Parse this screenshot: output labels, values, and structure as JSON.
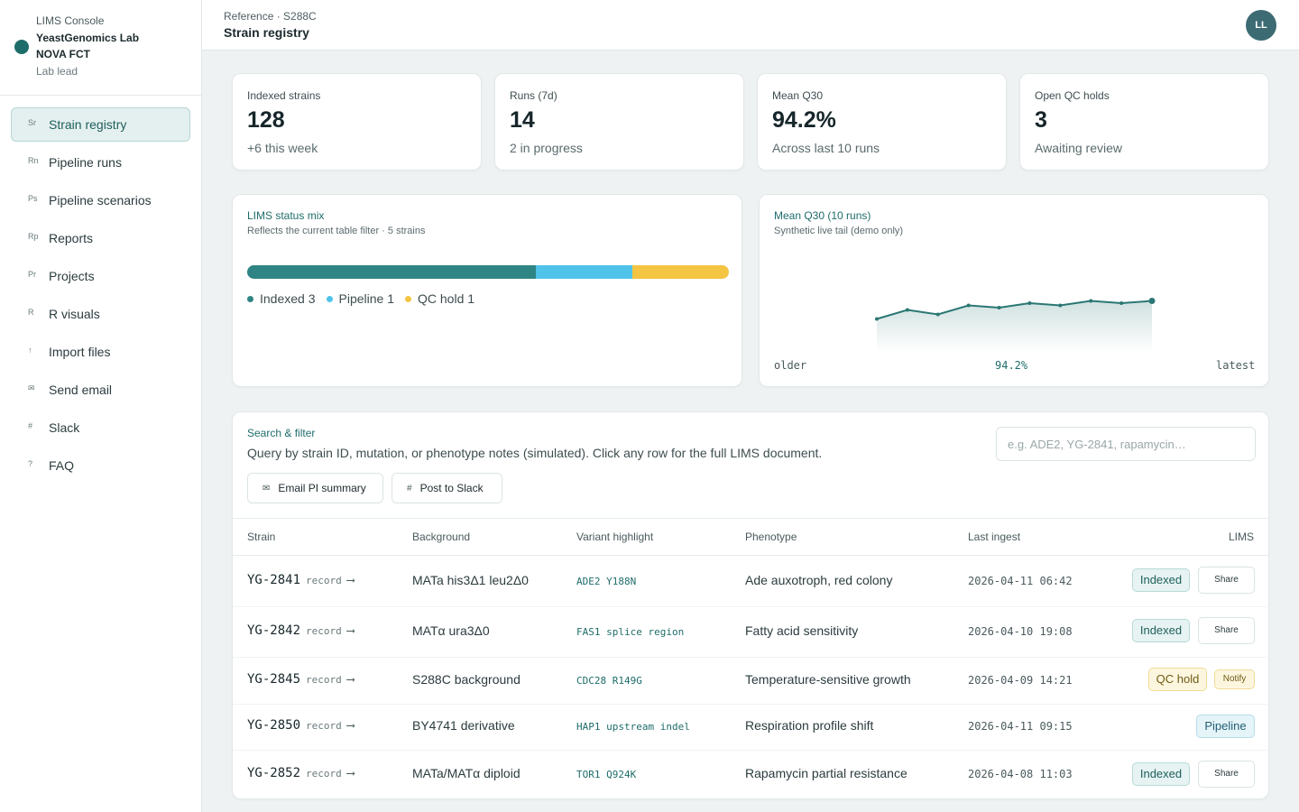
{
  "brand": {
    "app": "LIMS Console",
    "lab": "YeastGenomics Lab",
    "org": "NOVA FCT",
    "role": "Lab lead"
  },
  "sidebar": {
    "items": [
      {
        "abbr": "Sr",
        "label": "Strain registry"
      },
      {
        "abbr": "Rn",
        "label": "Pipeline runs"
      },
      {
        "abbr": "Ps",
        "label": "Pipeline scenarios"
      },
      {
        "abbr": "Rp",
        "label": "Reports"
      },
      {
        "abbr": "Pr",
        "label": "Projects"
      },
      {
        "abbr": "R",
        "label": "R visuals"
      },
      {
        "abbr": "↑",
        "label": "Import files"
      },
      {
        "abbr": "✉",
        "label": "Send email"
      },
      {
        "abbr": "#",
        "label": "Slack"
      },
      {
        "abbr": "?",
        "label": "FAQ"
      }
    ]
  },
  "header": {
    "breadcrumb": "Reference · S288C",
    "title": "Strain registry",
    "avatar": "LL"
  },
  "kpis": [
    {
      "label": "Indexed strains",
      "value": "128",
      "sub": "+6 this week"
    },
    {
      "label": "Runs (7d)",
      "value": "14",
      "sub": "2 in progress"
    },
    {
      "label": "Mean Q30",
      "value": "94.2%",
      "sub": "Across last 10 runs"
    },
    {
      "label": "Open QC holds",
      "value": "3",
      "sub": "Awaiting review"
    }
  ],
  "status_mix": {
    "title": "LIMS status mix",
    "subtitle": "Reflects the current table filter · 5 strains",
    "segments": [
      {
        "label": "Indexed",
        "count": 3,
        "color": "#2f8584"
      },
      {
        "label": "Pipeline",
        "count": 1,
        "color": "#4fc3ea"
      },
      {
        "label": "QC hold",
        "count": 1,
        "color": "#f4c542"
      }
    ],
    "legend": [
      "Indexed 3",
      "Pipeline 1",
      "QC hold 1"
    ]
  },
  "q30_chart": {
    "title": "Mean Q30 (10 runs)",
    "subtitle": "Synthetic live tail (demo only)",
    "axis_left": "older",
    "axis_mid": "94.2%",
    "axis_right": "latest",
    "line_color": "#2a7773"
  },
  "chart_data": {
    "type": "line",
    "title": "Mean Q30 (10 runs)",
    "x": [
      1,
      2,
      3,
      4,
      5,
      6,
      7,
      8,
      9,
      10
    ],
    "values": [
      93.7,
      94.1,
      93.9,
      94.3,
      94.2,
      94.4,
      94.3,
      94.5,
      94.4,
      94.5
    ],
    "ylim": [
      93.0,
      95.0
    ],
    "xlabel": "",
    "ylabel": "",
    "grid": false
  },
  "search": {
    "title": "Search & filter",
    "description": "Query by strain ID, mutation, or phenotype notes (simulated). Click any row for the full LIMS document.",
    "placeholder": "e.g. ADE2, YG-2841, rapamycin…",
    "email_button": "Email PI summary",
    "slack_button": "Post to Slack"
  },
  "table": {
    "columns": [
      "Strain",
      "Background",
      "Variant highlight",
      "Phenotype",
      "Last ingest",
      "LIMS"
    ],
    "record_label": "record",
    "rows": [
      {
        "strain": "YG-2841",
        "background": "MATa his3Δ1 leu2Δ0",
        "variant": "ADE2 Y188N",
        "phenotype": "Ade auxotroph, red colony",
        "ingest": "2026-04-11 06:42",
        "status": "Indexed",
        "action": "Share"
      },
      {
        "strain": "YG-2842",
        "background": "MATα ura3Δ0",
        "variant": "FAS1 splice region",
        "phenotype": "Fatty acid sensitivity",
        "ingest": "2026-04-10 19:08",
        "status": "Indexed",
        "action": "Share"
      },
      {
        "strain": "YG-2845",
        "background": "S288C background",
        "variant": "CDC28 R149G",
        "phenotype": "Temperature-sensitive growth",
        "ingest": "2026-04-09 14:21",
        "status": "QC hold",
        "action": "Notify"
      },
      {
        "strain": "YG-2850",
        "background": "BY4741 derivative",
        "variant": "HAP1 upstream indel",
        "phenotype": "Respiration profile shift",
        "ingest": "2026-04-11 09:15",
        "status": "Pipeline",
        "action": ""
      },
      {
        "strain": "YG-2852",
        "background": "MATa/MATα diploid",
        "variant": "TOR1 Q924K",
        "phenotype": "Rapamycin partial resistance",
        "ingest": "2026-04-08 11:03",
        "status": "Indexed",
        "action": "Share"
      }
    ]
  }
}
